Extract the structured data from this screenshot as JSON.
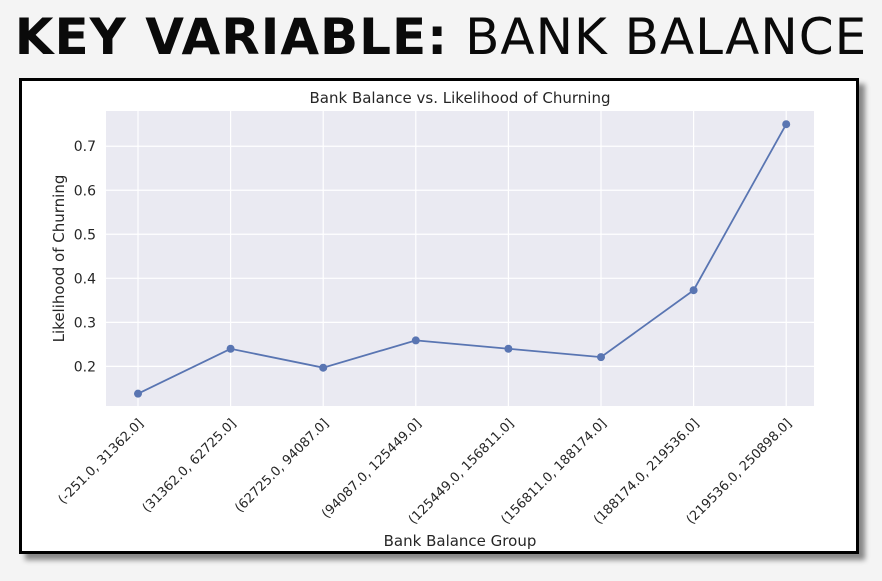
{
  "heading": {
    "key": "KEY VARIABLE:",
    "value": "BANK BALANCE"
  },
  "chart_data": {
    "type": "line",
    "title": "Bank Balance vs. Likelihood of Churning",
    "xlabel": "Bank Balance Group",
    "ylabel": "Likelihood of Churning",
    "categories": [
      "(-251.0, 31362.0]",
      "(31362.0, 62725.0]",
      "(62725.0, 94087.0]",
      "(94087.0, 125449.0]",
      "(125449.0, 156811.0]",
      "(156811.0, 188174.0]",
      "(188174.0, 219536.0]",
      "(219536.0, 250898.0]"
    ],
    "values": [
      0.138,
      0.24,
      0.197,
      0.259,
      0.24,
      0.221,
      0.373,
      0.75
    ],
    "yticks": [
      0.2,
      0.3,
      0.4,
      0.5,
      0.6,
      0.7
    ],
    "ylim": [
      0.11,
      0.78
    ],
    "grid": true,
    "colors": {
      "line": "#5975b2",
      "plot_bg": "#eaeaf2",
      "grid": "#ffffff"
    }
  }
}
